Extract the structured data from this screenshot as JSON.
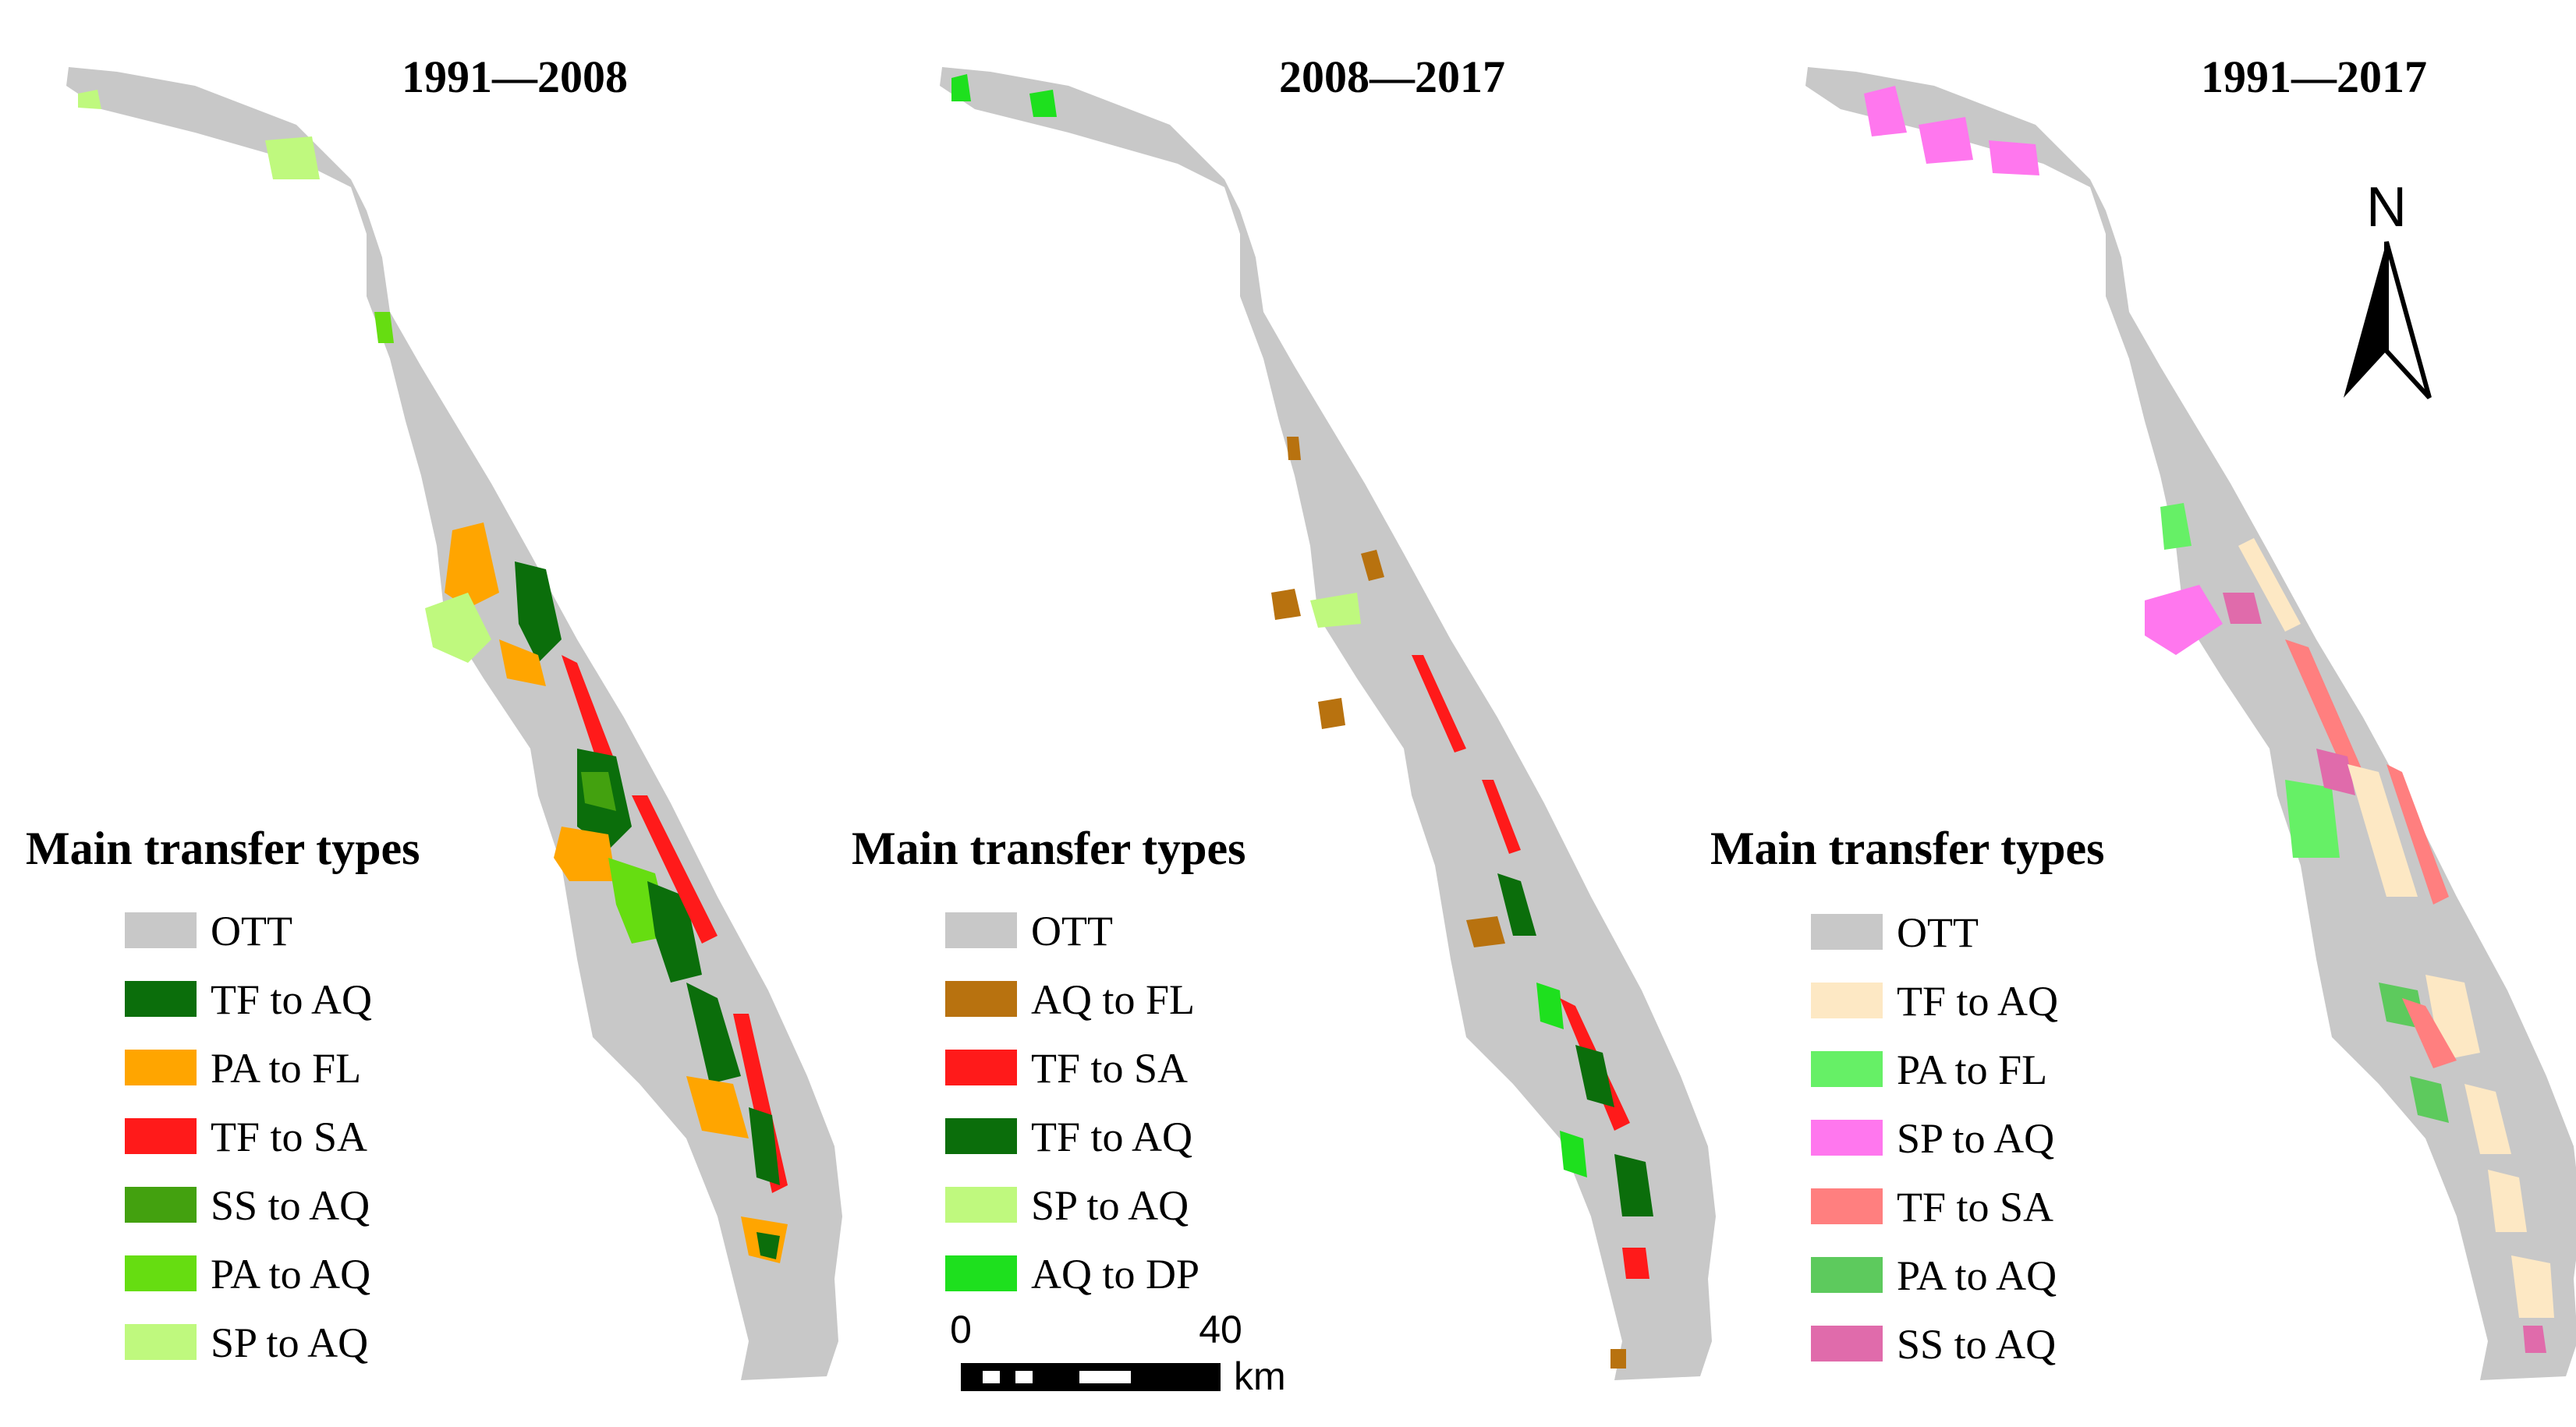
{
  "figure": {
    "panels": [
      {
        "period": "1991—2008",
        "legend_title": "Main transfer types",
        "legend": [
          {
            "label": "OTT",
            "color": "#c8c8c8"
          },
          {
            "label": "TF to AQ",
            "color": "#0b6e0b"
          },
          {
            "label": "PA to FL",
            "color": "#ffa500"
          },
          {
            "label": "TF to SA",
            "color": "#ff1a1a"
          },
          {
            "label": "SS to AQ",
            "color": "#43a10f"
          },
          {
            "label": "PA to AQ",
            "color": "#66dd11"
          },
          {
            "label": "SP to AQ",
            "color": "#bff97e"
          }
        ]
      },
      {
        "period": "2008—2017",
        "legend_title": "Main transfer types",
        "legend": [
          {
            "label": "OTT",
            "color": "#c8c8c8"
          },
          {
            "label": "AQ to FL",
            "color": "#b8720f"
          },
          {
            "label": "TF to SA",
            "color": "#ff1a1a"
          },
          {
            "label": "TF to AQ",
            "color": "#0b6e0b"
          },
          {
            "label": "SP to AQ",
            "color": "#bff97e"
          },
          {
            "label": "AQ to DP",
            "color": "#1ee01e"
          }
        ]
      },
      {
        "period": "1991—2017",
        "legend_title": "Main transfer types",
        "legend": [
          {
            "label": "OTT",
            "color": "#c8c8c8"
          },
          {
            "label": "TF to AQ",
            "color": "#fde8c4"
          },
          {
            "label": "PA to FL",
            "color": "#66f066"
          },
          {
            "label": "SP to AQ",
            "color": "#ff77ee"
          },
          {
            "label": "TF to SA",
            "color": "#ff7f7f"
          },
          {
            "label": "PA to AQ",
            "color": "#5dca5d"
          },
          {
            "label": "SS to AQ",
            "color": "#e06bab"
          }
        ]
      }
    ],
    "north_arrow": {
      "label": "N"
    },
    "scale_bar": {
      "start": "0",
      "end": "40",
      "unit": "km"
    }
  }
}
